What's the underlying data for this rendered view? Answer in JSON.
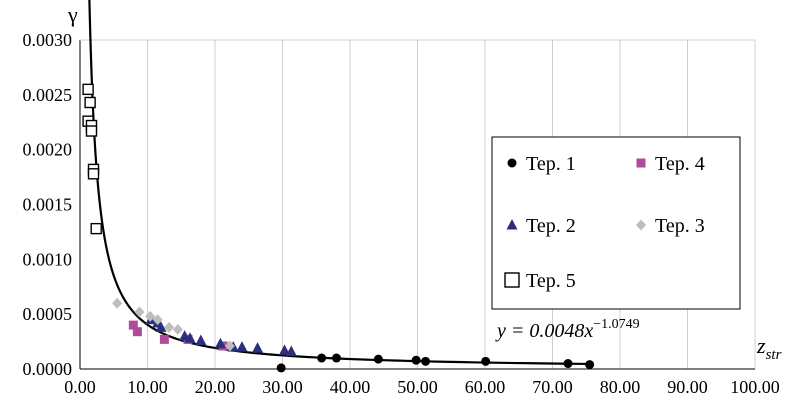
{
  "chart_data": {
    "type": "scatter",
    "ylabel": "γ",
    "xlabel": {
      "main": "z",
      "sub": "str"
    },
    "xlim": [
      0,
      100
    ],
    "ylim": [
      0,
      0.003
    ],
    "xticks": [
      "0.00",
      "10.00",
      "20.00",
      "30.00",
      "40.00",
      "50.00",
      "60.00",
      "70.00",
      "80.00",
      "90.00",
      "100.00"
    ],
    "yticks": [
      "0.0000",
      "0.0005",
      "0.0010",
      "0.0015",
      "0.0020",
      "0.0025",
      "0.0030"
    ],
    "grid": "vertical",
    "legend_position": "right",
    "colors": {
      "tep1": "#000000",
      "tep2": "#2b2f7d",
      "tep3": "#bdbdbd",
      "tep4": "#b24a9a",
      "tep5": "#000000",
      "trend": "#000000"
    },
    "series": [
      {
        "key": "tep1",
        "name": "Tep. 1",
        "marker": "circle",
        "points": [
          [
            29.8,
            1e-05
          ],
          [
            35.8,
            0.0001
          ],
          [
            38.0,
            0.0001
          ],
          [
            44.2,
            9e-05
          ],
          [
            49.8,
            8e-05
          ],
          [
            51.2,
            7e-05
          ],
          [
            60.1,
            7e-05
          ],
          [
            72.3,
            5e-05
          ],
          [
            75.5,
            4e-05
          ]
        ]
      },
      {
        "key": "tep4",
        "name": "Tep. 4",
        "marker": "square",
        "points": [
          [
            7.9,
            0.0004
          ],
          [
            8.5,
            0.00034
          ],
          [
            12.5,
            0.00027
          ],
          [
            16.0,
            0.00027
          ],
          [
            21.2,
            0.00021
          ]
        ]
      },
      {
        "key": "tep2",
        "name": "Tep. 2",
        "marker": "triangle",
        "points": [
          [
            10.5,
            0.00045
          ],
          [
            11.5,
            0.00042
          ],
          [
            12.0,
            0.00038
          ],
          [
            15.5,
            0.0003
          ],
          [
            16.3,
            0.00028
          ],
          [
            17.9,
            0.00026
          ],
          [
            20.8,
            0.00023
          ],
          [
            22.7,
            0.0002
          ],
          [
            24.0,
            0.0002
          ],
          [
            26.3,
            0.00019
          ],
          [
            30.3,
            0.00017
          ],
          [
            31.3,
            0.00016
          ]
        ]
      },
      {
        "key": "tep3",
        "name": "Tep. 3",
        "marker": "diamond",
        "points": [
          [
            5.5,
            0.0006
          ],
          [
            8.8,
            0.00052
          ],
          [
            10.4,
            0.00048
          ],
          [
            11.5,
            0.00045
          ],
          [
            13.2,
            0.00038
          ],
          [
            14.5,
            0.00036
          ],
          [
            22.2,
            0.00021
          ]
        ]
      },
      {
        "key": "tep5",
        "name": "Tep. 5",
        "marker": "open-square",
        "points": [
          [
            1.2,
            0.00255
          ],
          [
            1.5,
            0.00243
          ],
          [
            1.2,
            0.00226
          ],
          [
            1.7,
            0.00222
          ],
          [
            1.7,
            0.00217
          ],
          [
            2.0,
            0.00182
          ],
          [
            2.0,
            0.00178
          ],
          [
            2.4,
            0.00128
          ]
        ]
      }
    ],
    "trendline": {
      "equation": {
        "prefix": "y = 0.0048x",
        "exponent": "−1.0749"
      },
      "a": 0.0048,
      "b": -1.0749,
      "x_from": 1.3,
      "x_to": 75
    },
    "legend_layout": [
      [
        "tep1",
        "tep4"
      ],
      [
        "tep2",
        "tep3"
      ],
      [
        "tep5"
      ]
    ]
  }
}
